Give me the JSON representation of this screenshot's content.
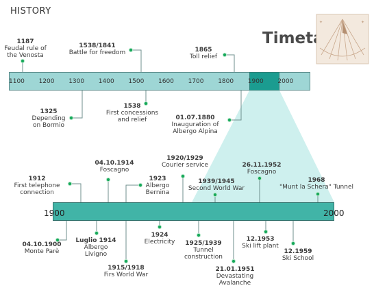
{
  "header": {
    "title": "HISTORY",
    "brand": "Timetable"
  },
  "icons": {
    "sundial": "sundial-icon",
    "event_marker": "green-dot-icon"
  },
  "colors": {
    "bar_light": "#9ed6d5",
    "bar_highlight": "#1b9c90",
    "bar_bottom": "#41b4a7",
    "zoom_fan": "#c9eeec",
    "marker": "#17a85a",
    "connector": "#6f8f8e"
  },
  "top_axis": {
    "ticks": [
      "1100",
      "1200",
      "1300",
      "1400",
      "1500",
      "1600",
      "1700",
      "1800",
      "1900",
      "2000"
    ]
  },
  "bottom_axis": {
    "start": "1900",
    "end": "2000"
  },
  "top_events": [
    {
      "date": "1187",
      "l1": "Feudal rule of",
      "l2": "the Venosta",
      "year": 1187
    },
    {
      "date": "1325",
      "l1": "Depending",
      "l2": "on Bormio",
      "year": 1325
    },
    {
      "date": "1538/1841",
      "l1": "Battle for freedom",
      "l2": "",
      "year": 1538
    },
    {
      "date": "1538",
      "l1": "First concessions",
      "l2": "and relief",
      "year": 1538
    },
    {
      "date": "1865",
      "l1": "Toll relief",
      "l2": "",
      "year": 1865
    },
    {
      "date": "01.07.1880",
      "l1": "Inauguration of",
      "l2": "Albergo Alpina",
      "year": 1880
    }
  ],
  "bottom_events": [
    {
      "date": "1912",
      "l1": "First telephone",
      "l2": "connection",
      "year": 1912
    },
    {
      "date": "04.10.1900",
      "l1": "Monte Parè",
      "l2": "",
      "year": 1900
    },
    {
      "date": "04.10.1914",
      "l1": "Foscagno",
      "l2": "",
      "year": 1914
    },
    {
      "date": "Luglio 1914",
      "l1": "Albergo",
      "l2": "Livigno",
      "year": 1914
    },
    {
      "date": "1923",
      "l1": "Albergo",
      "l2": "Bernina",
      "year": 1923
    },
    {
      "date": "1915/1918",
      "l1": "Firs World War",
      "l2": "",
      "year": 1915
    },
    {
      "date": "1924",
      "l1": "Electricity",
      "l2": "",
      "year": 1924
    },
    {
      "date": "1920/1929",
      "l1": "Courier service",
      "l2": "",
      "year": 1920
    },
    {
      "date": "1925/1939",
      "l1": "Tunnel",
      "l2": "construction",
      "year": 1925
    },
    {
      "date": "1939/1945",
      "l1": "Second World War",
      "l2": "",
      "year": 1939
    },
    {
      "date": "21.01.1951",
      "l1": "Devastating",
      "l2": "Avalanche",
      "year": 1951
    },
    {
      "date": "26.11.1952",
      "l1": "Foscagno",
      "l2": "",
      "year": 1952
    },
    {
      "date": "12.1953",
      "l1": "Ski lift plant",
      "l2": "",
      "year": 1953
    },
    {
      "date": "12.1959",
      "l1": "Ski School",
      "l2": "",
      "year": 1959
    },
    {
      "date": "1968",
      "l1": "\"Munt la Schera\" Tunnel",
      "l2": "",
      "year": 1968
    }
  ]
}
